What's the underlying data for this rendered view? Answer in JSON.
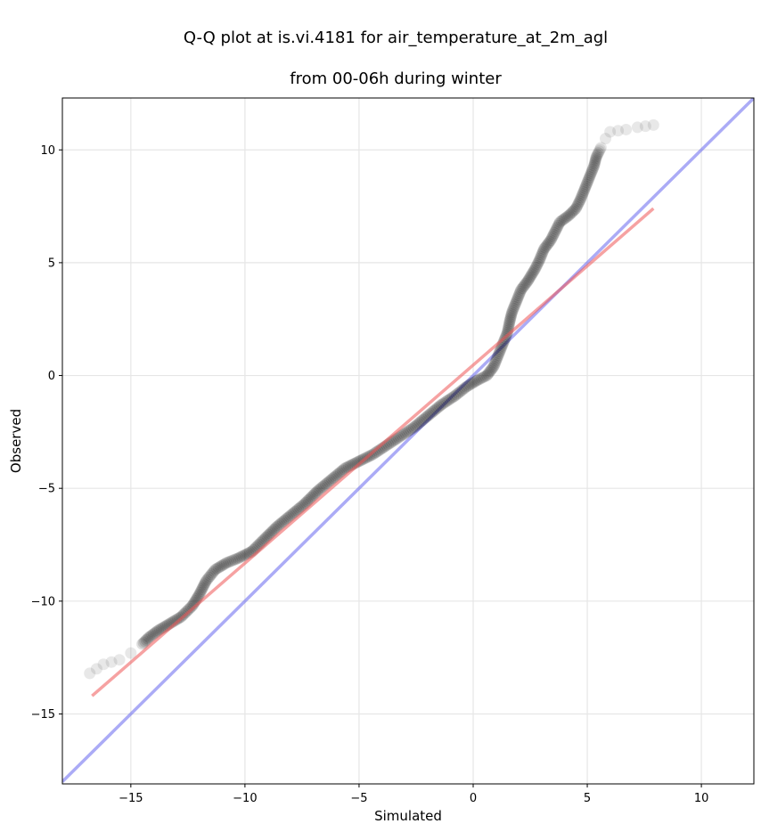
{
  "chart_data": {
    "type": "scatter",
    "title_line1": "Q-Q plot at is.vi.4181 for air_temperature_at_2m_agl",
    "title_line2": "from 00-06h during winter",
    "xlabel": "Simulated",
    "ylabel": "Observed",
    "xlim": [
      -18,
      12.3
    ],
    "ylim": [
      -18.1,
      12.3
    ],
    "xticks": [
      -15,
      -10,
      -5,
      0,
      5,
      10
    ],
    "yticks": [
      -15,
      -10,
      -5,
      0,
      5,
      10
    ],
    "xtick_labels": [
      "−15",
      "−10",
      "−5",
      "0",
      "5",
      "10"
    ],
    "ytick_labels": [
      "−15",
      "−10",
      "−5",
      "0",
      "5",
      "10"
    ],
    "grid": true,
    "colors": {
      "points": "#000000",
      "identity_line": "#6666ee",
      "fit_line": "#ee5555",
      "grid": "#e6e6e6"
    },
    "identity_line": {
      "x": [
        -18,
        12.3
      ],
      "y": [
        -18,
        12.3
      ]
    },
    "fit_line": {
      "x": [
        -16.7,
        7.9
      ],
      "y": [
        -14.2,
        7.4
      ]
    },
    "quantile_curve": [
      [
        -16.8,
        -13.2
      ],
      [
        -16.2,
        -12.8
      ],
      [
        -15.5,
        -12.6
      ],
      [
        -15.0,
        -12.3
      ],
      [
        -14.5,
        -11.9
      ],
      [
        -14.2,
        -11.6
      ],
      [
        -13.8,
        -11.3
      ],
      [
        -13.3,
        -11.0
      ],
      [
        -12.8,
        -10.7
      ],
      [
        -12.3,
        -10.2
      ],
      [
        -12.0,
        -9.7
      ],
      [
        -11.7,
        -9.1
      ],
      [
        -11.3,
        -8.6
      ],
      [
        -10.8,
        -8.3
      ],
      [
        -10.3,
        -8.1
      ],
      [
        -9.7,
        -7.8
      ],
      [
        -9.2,
        -7.3
      ],
      [
        -8.6,
        -6.7
      ],
      [
        -8.0,
        -6.2
      ],
      [
        -7.4,
        -5.7
      ],
      [
        -6.8,
        -5.1
      ],
      [
        -6.2,
        -4.6
      ],
      [
        -5.6,
        -4.1
      ],
      [
        -5.0,
        -3.8
      ],
      [
        -4.4,
        -3.5
      ],
      [
        -3.8,
        -3.1
      ],
      [
        -3.2,
        -2.7
      ],
      [
        -2.6,
        -2.3
      ],
      [
        -2.0,
        -1.8
      ],
      [
        -1.4,
        -1.3
      ],
      [
        -0.8,
        -0.9
      ],
      [
        -0.3,
        -0.5
      ],
      [
        0.2,
        -0.2
      ],
      [
        0.6,
        0.0
      ],
      [
        0.9,
        0.4
      ],
      [
        1.1,
        0.9
      ],
      [
        1.3,
        1.4
      ],
      [
        1.5,
        1.9
      ],
      [
        1.6,
        2.4
      ],
      [
        1.7,
        2.8
      ],
      [
        1.9,
        3.3
      ],
      [
        2.1,
        3.8
      ],
      [
        2.4,
        4.2
      ],
      [
        2.7,
        4.7
      ],
      [
        2.9,
        5.1
      ],
      [
        3.1,
        5.6
      ],
      [
        3.4,
        6.0
      ],
      [
        3.6,
        6.4
      ],
      [
        3.8,
        6.8
      ],
      [
        4.2,
        7.1
      ],
      [
        4.5,
        7.4
      ],
      [
        4.7,
        7.8
      ],
      [
        4.9,
        8.3
      ],
      [
        5.1,
        8.8
      ],
      [
        5.3,
        9.3
      ],
      [
        5.4,
        9.7
      ],
      [
        5.6,
        10.1
      ],
      [
        5.8,
        10.5
      ],
      [
        6.0,
        10.8
      ],
      [
        6.7,
        10.9
      ],
      [
        7.2,
        11.0
      ],
      [
        7.9,
        11.1
      ]
    ]
  }
}
